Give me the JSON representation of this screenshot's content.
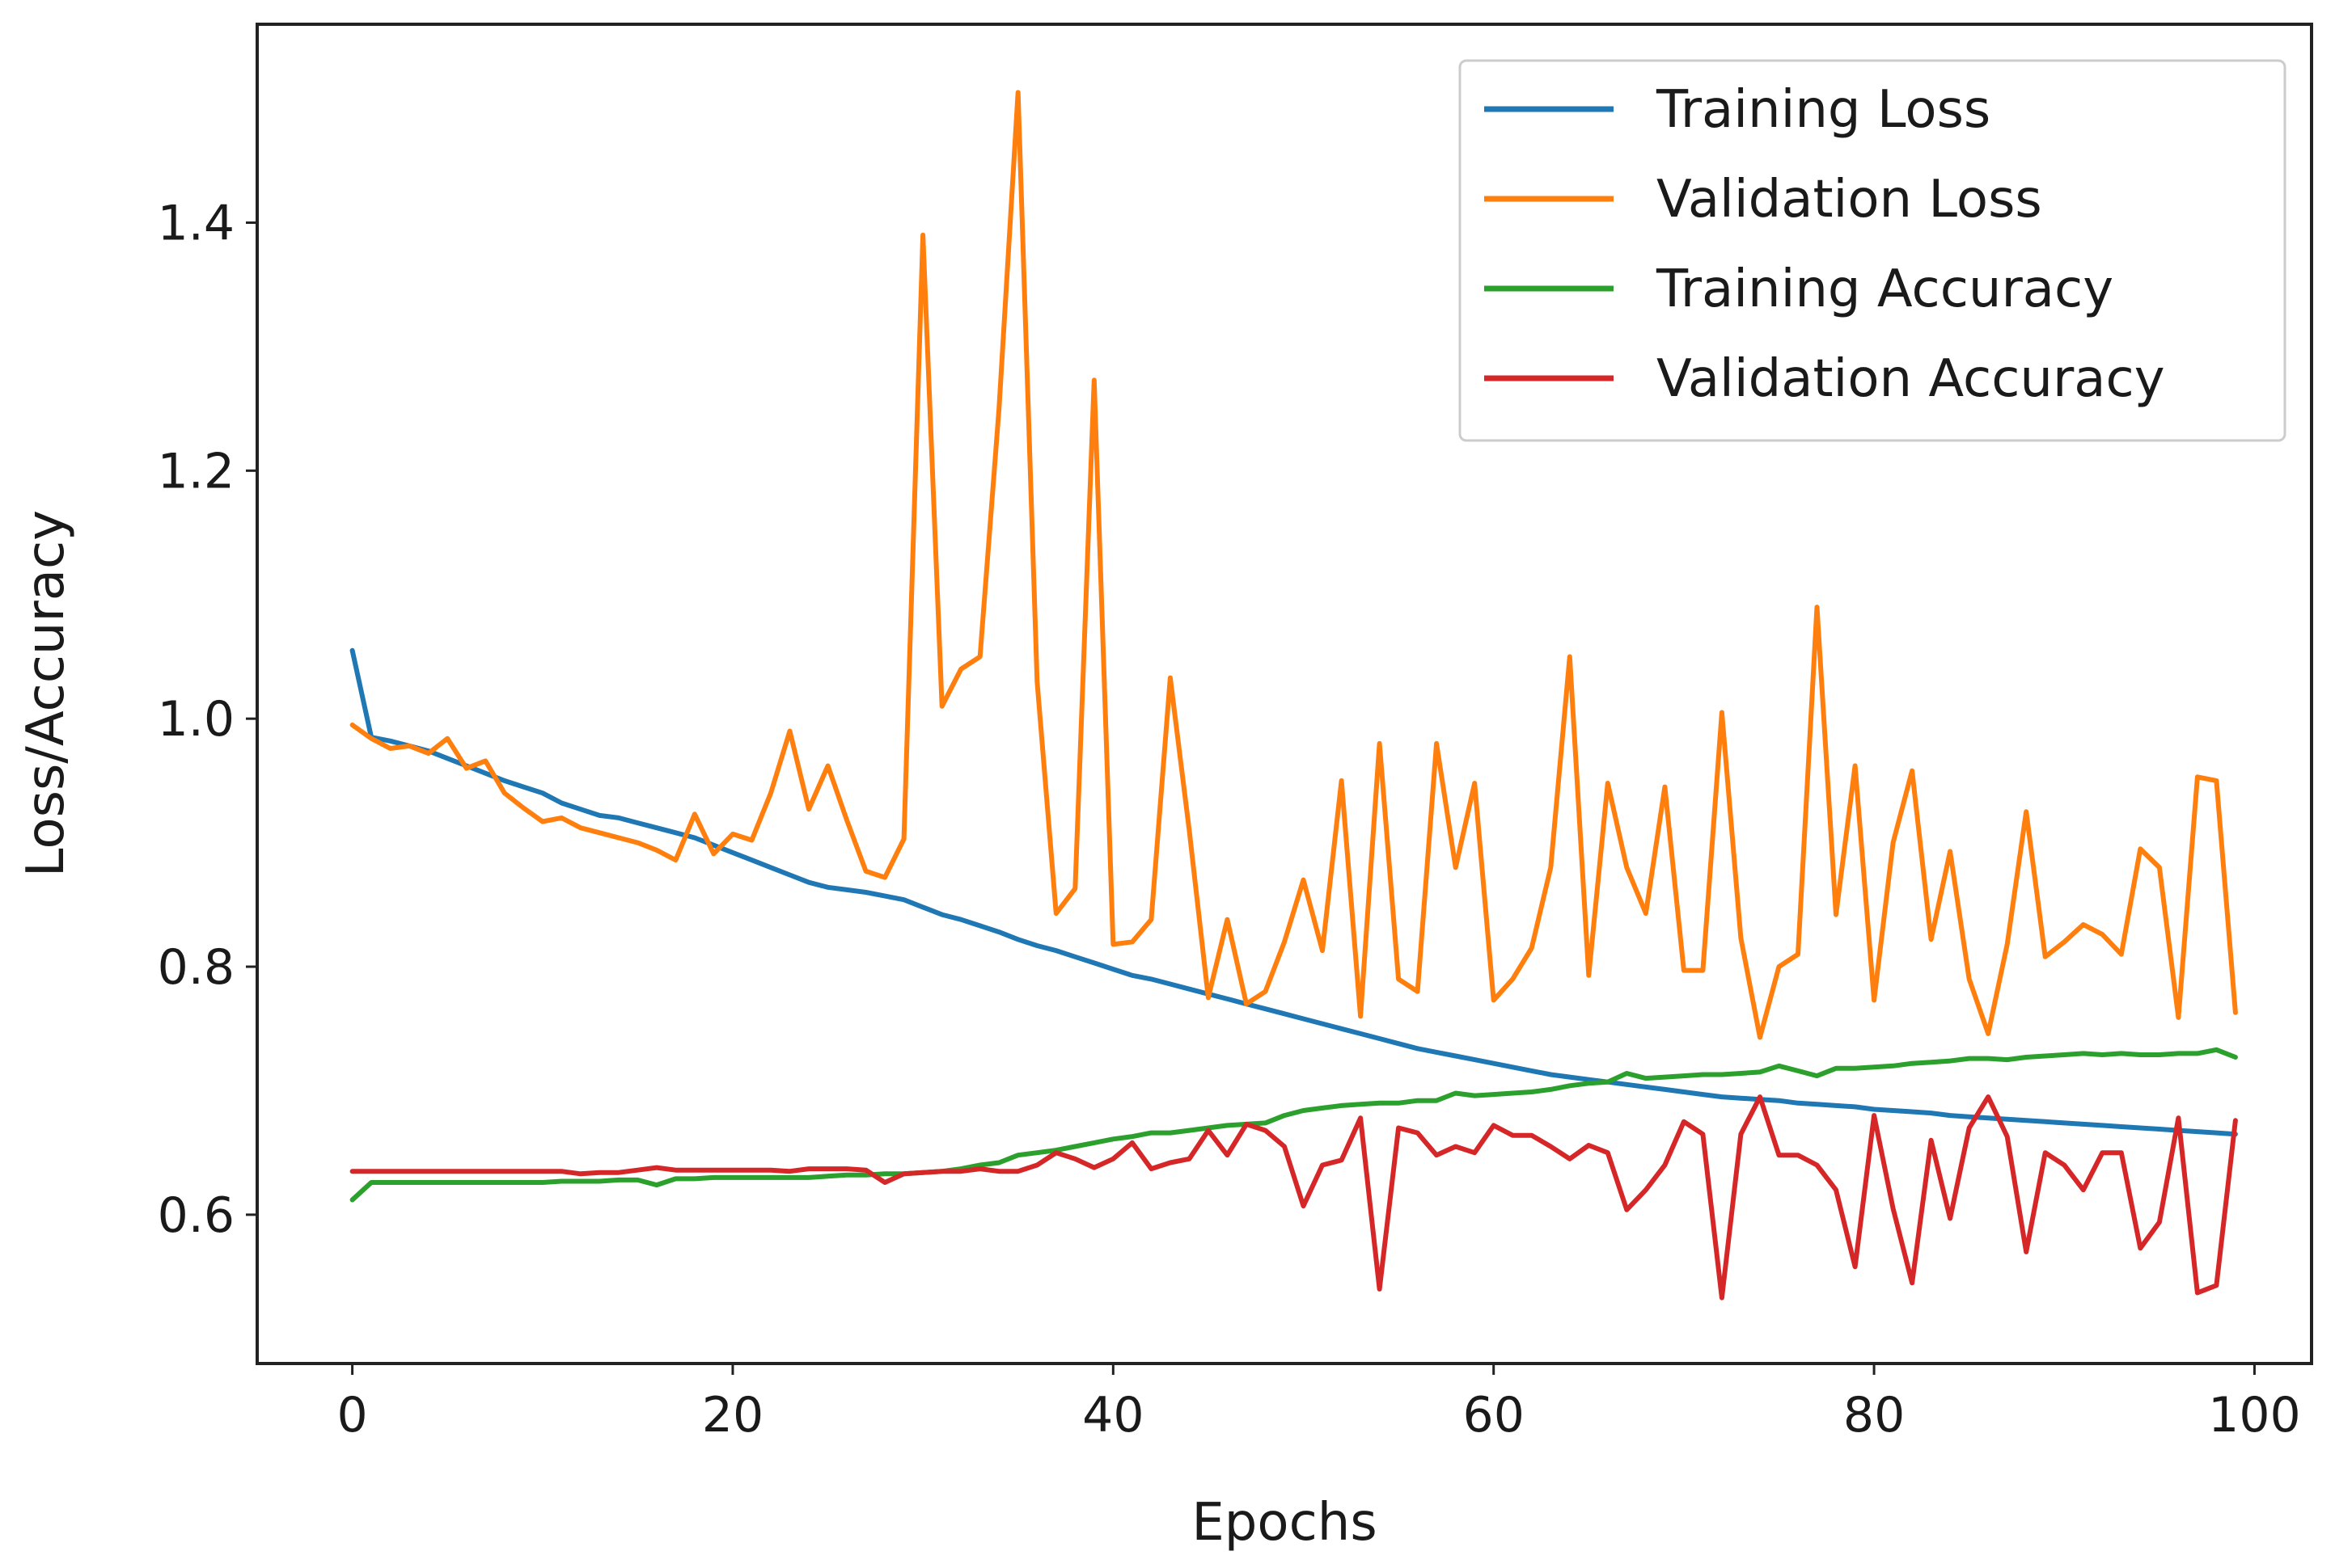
{
  "chart_data": {
    "type": "line",
    "title": "",
    "xlabel": "Epochs",
    "ylabel": "Loss/Accuracy",
    "xlim": [
      -5,
      103
    ],
    "ylim": [
      0.48,
      1.56
    ],
    "xticks": [
      0,
      20,
      40,
      60,
      80,
      100
    ],
    "yticks": [
      0.6,
      0.8,
      1.0,
      1.2,
      1.4
    ],
    "xtick_labels": [
      "0",
      "20",
      "40",
      "60",
      "80",
      "100"
    ],
    "ytick_labels": [
      "0.6",
      "0.8",
      "1.0",
      "1.2",
      "1.4"
    ],
    "grid": false,
    "legend_position": "top-right",
    "series": [
      {
        "name": "Training Loss",
        "color": "#1f77b4",
        "values": [
          1.055,
          0.985,
          0.982,
          0.978,
          0.974,
          0.968,
          0.962,
          0.956,
          0.95,
          0.945,
          0.94,
          0.932,
          0.927,
          0.922,
          0.92,
          0.916,
          0.912,
          0.908,
          0.904,
          0.898,
          0.892,
          0.886,
          0.88,
          0.874,
          0.868,
          0.864,
          0.862,
          0.86,
          0.857,
          0.854,
          0.848,
          0.842,
          0.838,
          0.833,
          0.828,
          0.822,
          0.817,
          0.813,
          0.808,
          0.803,
          0.798,
          0.793,
          0.79,
          0.786,
          0.782,
          0.778,
          0.774,
          0.77,
          0.766,
          0.762,
          0.758,
          0.754,
          0.75,
          0.746,
          0.742,
          0.738,
          0.734,
          0.731,
          0.728,
          0.725,
          0.722,
          0.719,
          0.716,
          0.713,
          0.711,
          0.709,
          0.707,
          0.705,
          0.703,
          0.701,
          0.699,
          0.697,
          0.695,
          0.694,
          0.693,
          0.692,
          0.69,
          0.689,
          0.688,
          0.687,
          0.685,
          0.684,
          0.683,
          0.682,
          0.68,
          0.679,
          0.678,
          0.677,
          0.676,
          0.675,
          0.674,
          0.673,
          0.672,
          0.671,
          0.67,
          0.669,
          0.668,
          0.667,
          0.666,
          0.665
        ]
      },
      {
        "name": "Validation Loss",
        "color": "#ff7f0e",
        "values": [
          0.995,
          0.984,
          0.976,
          0.978,
          0.972,
          0.984,
          0.96,
          0.966,
          0.94,
          0.928,
          0.917,
          0.92,
          0.912,
          0.908,
          0.904,
          0.9,
          0.894,
          0.886,
          0.923,
          0.891,
          0.907,
          0.902,
          0.94,
          0.99,
          0.927,
          0.962,
          0.918,
          0.877,
          0.872,
          0.903,
          1.39,
          1.01,
          1.04,
          1.05,
          1.25,
          1.505,
          1.03,
          0.843,
          0.863,
          1.273,
          0.818,
          0.82,
          0.838,
          1.033,
          0.91,
          0.775,
          0.838,
          0.77,
          0.78,
          0.82,
          0.87,
          0.813,
          0.95,
          0.76,
          0.98,
          0.79,
          0.78,
          0.98,
          0.88,
          0.948,
          0.773,
          0.79,
          0.815,
          0.88,
          1.05,
          0.793,
          0.948,
          0.88,
          0.843,
          0.945,
          0.797,
          0.797,
          1.005,
          0.823,
          0.743,
          0.8,
          0.81,
          1.09,
          0.842,
          0.962,
          0.773,
          0.9,
          0.958,
          0.822,
          0.893,
          0.79,
          0.746,
          0.818,
          0.925,
          0.808,
          0.82,
          0.834,
          0.826,
          0.81,
          0.895,
          0.88,
          0.759,
          0.953,
          0.95,
          0.763
        ]
      },
      {
        "name": "Training Accuracy",
        "color": "#2ca02c",
        "values": [
          0.612,
          0.626,
          0.626,
          0.626,
          0.626,
          0.626,
          0.626,
          0.626,
          0.626,
          0.626,
          0.626,
          0.627,
          0.627,
          0.627,
          0.628,
          0.628,
          0.624,
          0.629,
          0.629,
          0.63,
          0.63,
          0.63,
          0.63,
          0.63,
          0.63,
          0.631,
          0.632,
          0.632,
          0.633,
          0.633,
          0.634,
          0.635,
          0.637,
          0.64,
          0.642,
          0.648,
          0.65,
          0.652,
          0.655,
          0.658,
          0.661,
          0.663,
          0.666,
          0.666,
          0.668,
          0.67,
          0.672,
          0.673,
          0.674,
          0.68,
          0.684,
          0.686,
          0.688,
          0.689,
          0.69,
          0.69,
          0.692,
          0.692,
          0.698,
          0.696,
          0.697,
          0.698,
          0.699,
          0.701,
          0.704,
          0.706,
          0.707,
          0.714,
          0.71,
          0.711,
          0.712,
          0.713,
          0.713,
          0.714,
          0.715,
          0.72,
          0.716,
          0.712,
          0.718,
          0.718,
          0.719,
          0.72,
          0.722,
          0.723,
          0.724,
          0.726,
          0.726,
          0.725,
          0.727,
          0.728,
          0.729,
          0.73,
          0.729,
          0.73,
          0.729,
          0.729,
          0.73,
          0.73,
          0.733,
          0.727
        ]
      },
      {
        "name": "Validation Accuracy",
        "color": "#d62728",
        "values": [
          0.635,
          0.635,
          0.635,
          0.635,
          0.635,
          0.635,
          0.635,
          0.635,
          0.635,
          0.635,
          0.635,
          0.635,
          0.633,
          0.634,
          0.634,
          0.636,
          0.638,
          0.636,
          0.636,
          0.636,
          0.636,
          0.636,
          0.636,
          0.635,
          0.637,
          0.637,
          0.637,
          0.636,
          0.626,
          0.633,
          0.634,
          0.635,
          0.635,
          0.637,
          0.635,
          0.635,
          0.64,
          0.65,
          0.645,
          0.638,
          0.645,
          0.658,
          0.637,
          0.642,
          0.645,
          0.668,
          0.648,
          0.673,
          0.668,
          0.655,
          0.607,
          0.64,
          0.644,
          0.678,
          0.54,
          0.67,
          0.666,
          0.648,
          0.655,
          0.65,
          0.672,
          0.664,
          0.664,
          0.655,
          0.645,
          0.656,
          0.65,
          0.604,
          0.62,
          0.64,
          0.675,
          0.665,
          0.533,
          0.665,
          0.695,
          0.648,
          0.648,
          0.64,
          0.62,
          0.558,
          0.68,
          0.605,
          0.545,
          0.66,
          0.597,
          0.67,
          0.695,
          0.663,
          0.57,
          0.65,
          0.64,
          0.62,
          0.65,
          0.65,
          0.573,
          0.594,
          0.678,
          0.537,
          0.543,
          0.676
        ]
      }
    ]
  }
}
